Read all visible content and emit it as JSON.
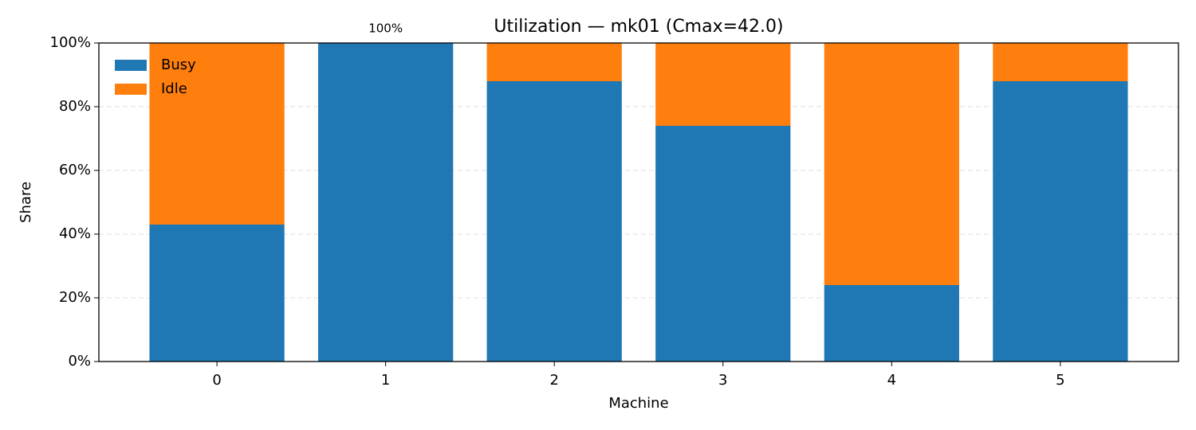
{
  "chart_data": {
    "type": "bar",
    "stacked": true,
    "title": "Utilization — mk01 (Cmax=42.0)",
    "x_label": "Machine",
    "y_label": "Share",
    "categories": [
      "0",
      "1",
      "2",
      "3",
      "4",
      "5"
    ],
    "series": [
      {
        "name": "Busy",
        "color": "#1f77b4",
        "values": [
          43,
          100,
          88,
          74,
          24,
          88
        ],
        "value_labels": [
          "43%",
          "100%",
          "88%",
          "74%",
          "24%",
          "88%"
        ]
      },
      {
        "name": "Idle",
        "color": "#ff7f0e",
        "values": [
          57,
          0,
          12,
          26,
          76,
          12
        ]
      }
    ],
    "ylim": [
      0,
      100
    ],
    "yticks": [
      {
        "value": 0,
        "label": "0%"
      },
      {
        "value": 20,
        "label": "20%"
      },
      {
        "value": 40,
        "label": "40%"
      },
      {
        "value": 60,
        "label": "60%"
      },
      {
        "value": 80,
        "label": "80%"
      },
      {
        "value": 100,
        "label": "100%"
      }
    ],
    "grid": true,
    "legend": "upper left"
  }
}
